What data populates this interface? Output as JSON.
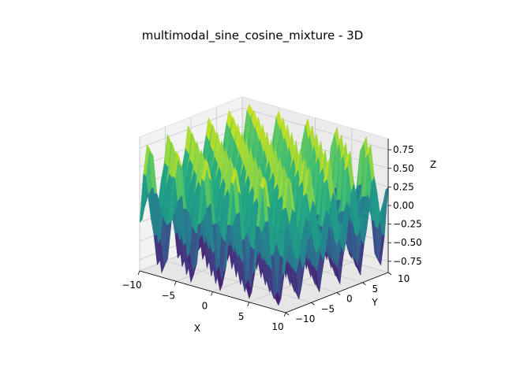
{
  "chart_data": {
    "type": "surface3d",
    "title": "multimodal_sine_cosine_mixture - 3D",
    "xlabel": "X",
    "ylabel": "Y",
    "zlabel": "Z",
    "xlim": [
      -10,
      10
    ],
    "ylim": [
      -10,
      10
    ],
    "zlim": [
      -0.9,
      0.9
    ],
    "x_ticks": [
      "−10",
      "−5",
      "0",
      "5",
      "10"
    ],
    "y_ticks": [
      "−10",
      "−5",
      "0",
      "5",
      "10"
    ],
    "z_ticks": [
      "−0.75",
      "−0.50",
      "−0.25",
      "0.00",
      "0.25",
      "0.50",
      "0.75"
    ],
    "grid": true,
    "colormap": "viridis",
    "grid_points": 41
  }
}
